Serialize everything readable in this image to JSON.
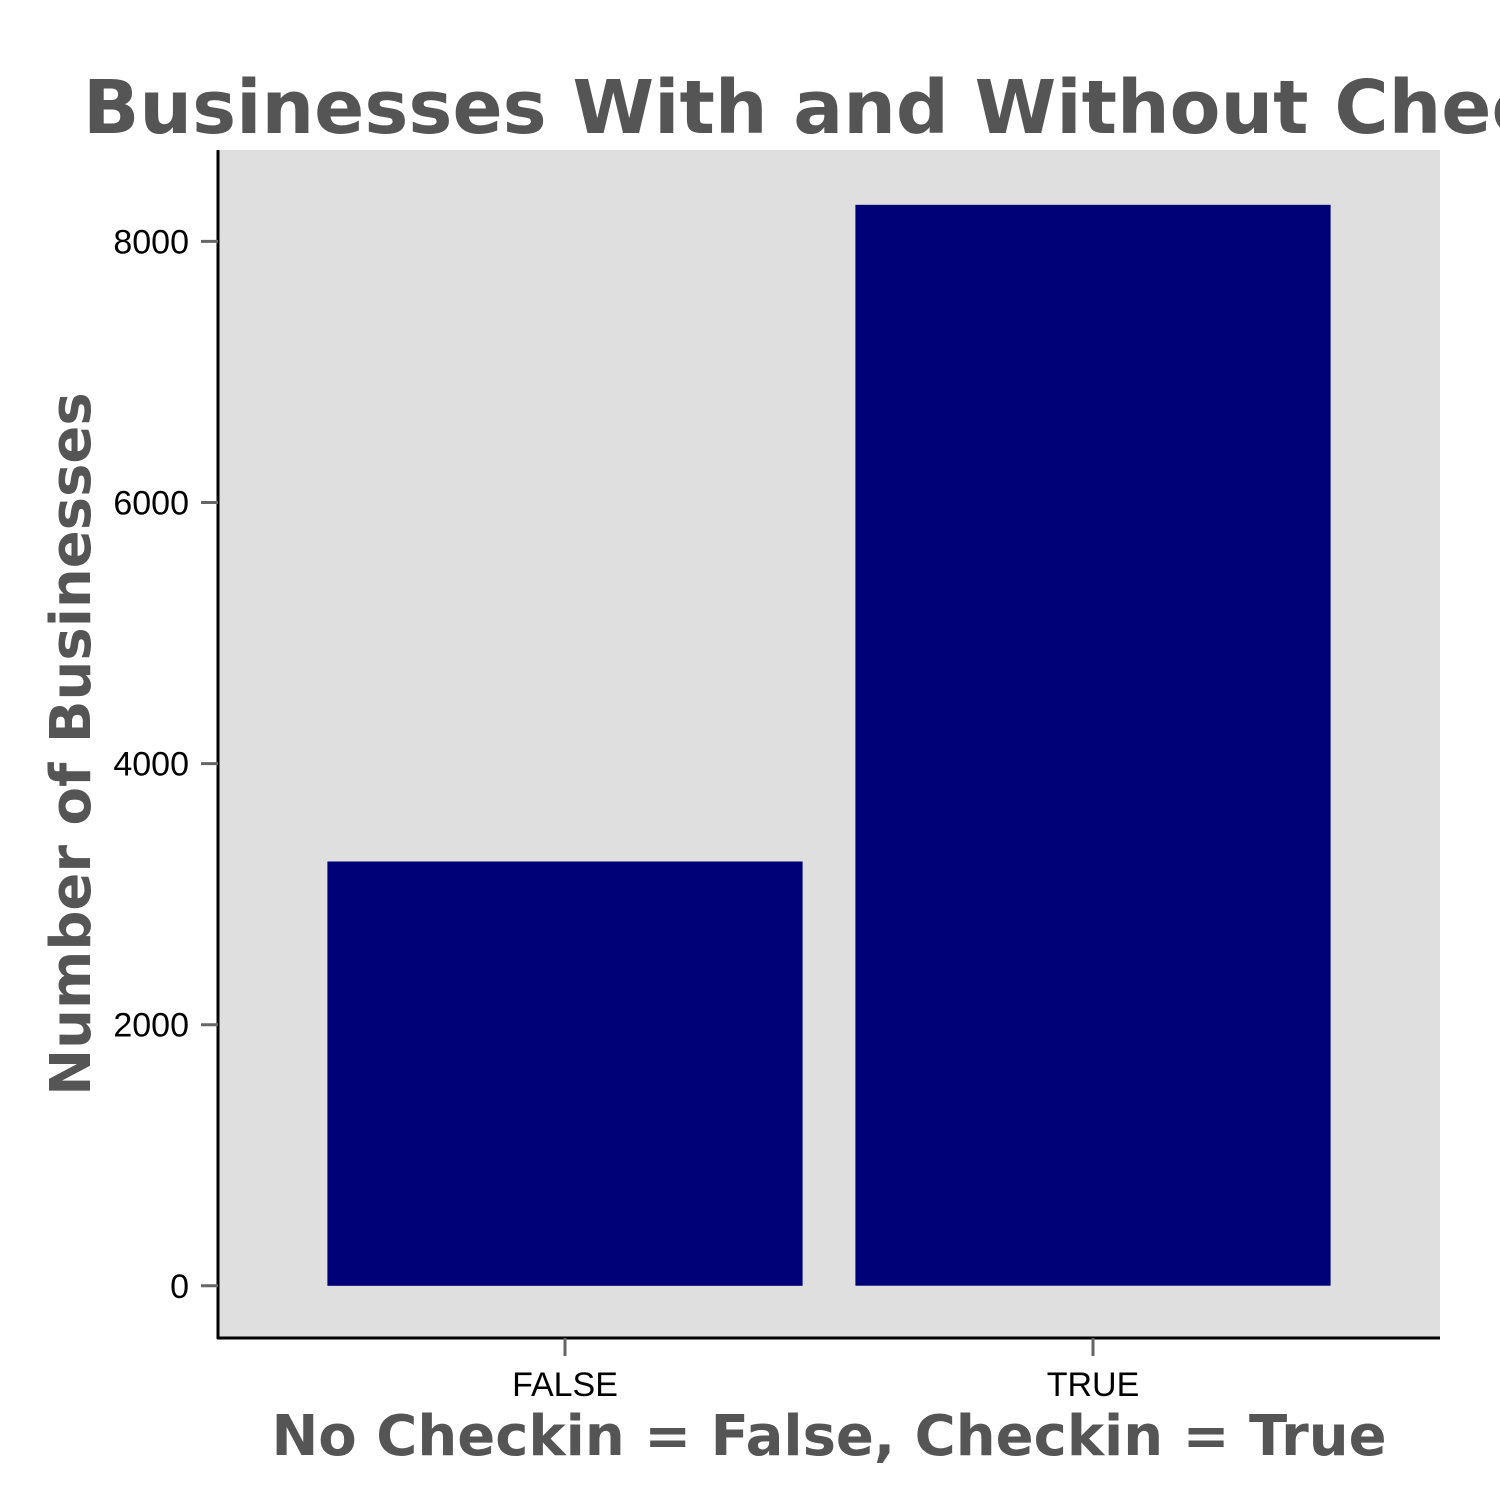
{
  "chart_data": {
    "type": "bar",
    "title": "Businesses With and Without Checkins",
    "xlabel": "No Checkin = False, Checkin = True",
    "ylabel": "Number of Businesses",
    "categories": [
      "FALSE",
      "TRUE"
    ],
    "values": [
      3250,
      8280
    ],
    "ylim": [
      -400,
      8700
    ],
    "yticks": [
      0,
      2000,
      4000,
      6000,
      8000
    ],
    "grid": false,
    "legend": "none",
    "colors": {
      "bar": "#000077",
      "panel": "#dfdfdf",
      "axis_line": "#000000",
      "tick_mark": "#666666",
      "title": "#555555"
    }
  }
}
